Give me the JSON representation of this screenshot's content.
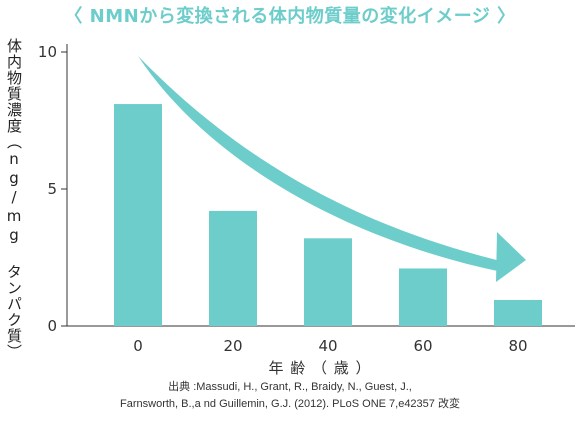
{
  "chart_data": {
    "type": "bar",
    "title": "〈 NMNから変換される体内物質量の変化イメージ 〉",
    "ylabel": "体内物質濃度（ng/mg タンパク質）",
    "xlabel": "年 齢 （ 歳 ）",
    "categories": [
      "0",
      "20",
      "40",
      "60",
      "80"
    ],
    "values": [
      8.1,
      4.2,
      3.2,
      2.1,
      0.95
    ],
    "ylim": [
      0,
      10
    ],
    "yticks": [
      0,
      5,
      10
    ],
    "bar_color": "#6ccdcb",
    "arrow_color": "#6ccdcb",
    "grid": false
  },
  "source": {
    "line1": "出典 :Massudi, H., Grant, R., Braidy, N., Guest, J.,",
    "line2": "Farnsworth, B.,a nd Guillemin, G.J. (2012). PLoS ONE 7,e42357 改変"
  }
}
